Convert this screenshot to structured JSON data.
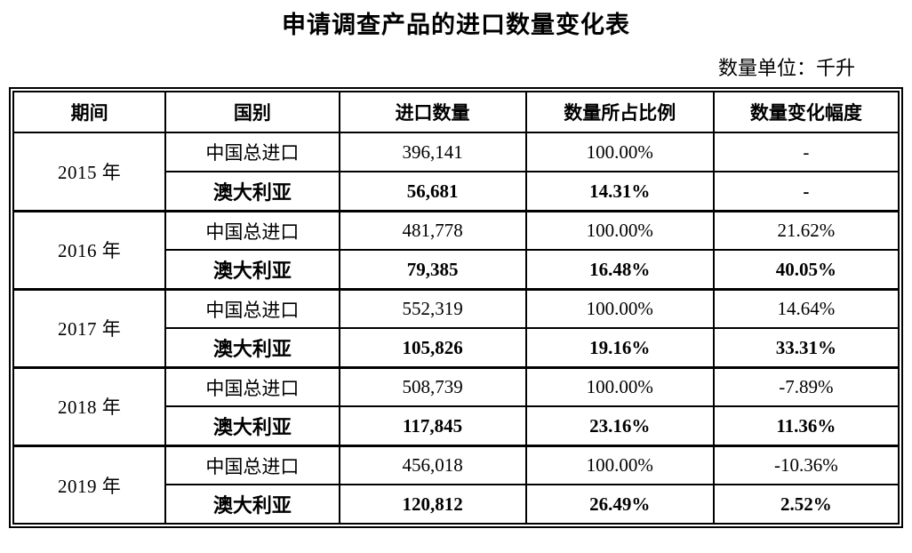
{
  "page": {
    "title": "申请调查产品的进口数量变化表",
    "unit_note": "数量单位：千升"
  },
  "table": {
    "headers": [
      "期间",
      "国别",
      "进口数量",
      "数量所占比例",
      "数量变化幅度"
    ],
    "groups": [
      {
        "period": "2015 年",
        "rows": [
          {
            "country": "中国总进口",
            "quantity": "396,141",
            "share": "100.00%",
            "change": "-",
            "bold": false
          },
          {
            "country": "澳大利亚",
            "quantity": "56,681",
            "share": "14.31%",
            "change": "-",
            "bold": true
          }
        ]
      },
      {
        "period": "2016 年",
        "rows": [
          {
            "country": "中国总进口",
            "quantity": "481,778",
            "share": "100.00%",
            "change": "21.62%",
            "bold": false
          },
          {
            "country": "澳大利亚",
            "quantity": "79,385",
            "share": "16.48%",
            "change": "40.05%",
            "bold": true
          }
        ]
      },
      {
        "period": "2017 年",
        "rows": [
          {
            "country": "中国总进口",
            "quantity": "552,319",
            "share": "100.00%",
            "change": "14.64%",
            "bold": false
          },
          {
            "country": "澳大利亚",
            "quantity": "105,826",
            "share": "19.16%",
            "change": "33.31%",
            "bold": true
          }
        ]
      },
      {
        "period": "2018 年",
        "rows": [
          {
            "country": "中国总进口",
            "quantity": "508,739",
            "share": "100.00%",
            "change": "-7.89%",
            "bold": false
          },
          {
            "country": "澳大利亚",
            "quantity": "117,845",
            "share": "23.16%",
            "change": "11.36%",
            "bold": true
          }
        ]
      },
      {
        "period": "2019 年",
        "rows": [
          {
            "country": "中国总进口",
            "quantity": "456,018",
            "share": "100.00%",
            "change": "-10.36%",
            "bold": false
          },
          {
            "country": "澳大利亚",
            "quantity": "120,812",
            "share": "26.49%",
            "change": "2.52%",
            "bold": true
          }
        ]
      }
    ]
  }
}
